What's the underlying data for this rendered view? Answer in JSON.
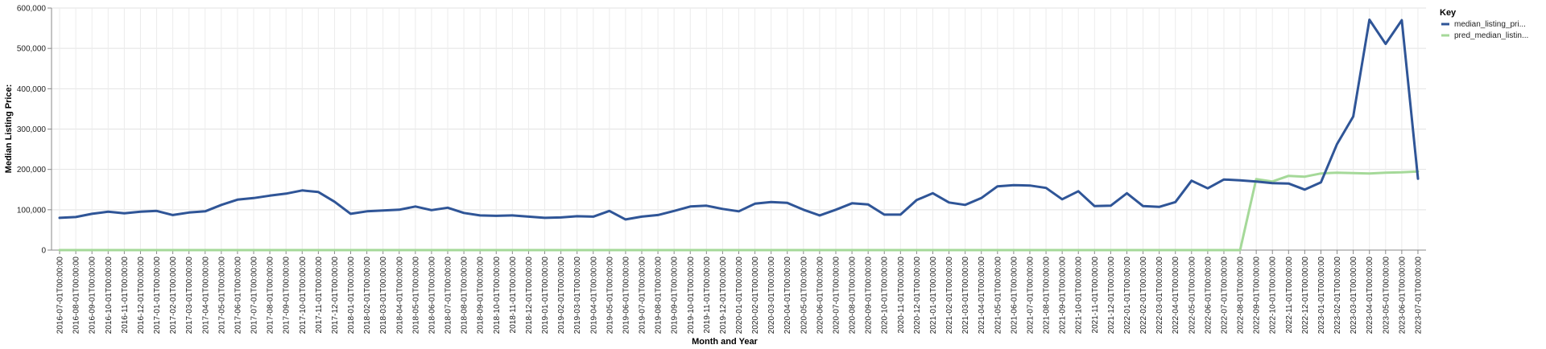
{
  "chart_data": {
    "type": "line",
    "title": "",
    "xlabel": "Month and Year",
    "ylabel": "Median Listing Price:",
    "ylim": [
      0,
      600000
    ],
    "yticks": [
      "0",
      "100,000",
      "200,000",
      "300,000",
      "400,000",
      "500,000",
      "600,000"
    ],
    "grid": true,
    "legend_position": "right",
    "legend_title": "Key",
    "x": [
      "2016-07-01T00:00:00",
      "2016-08-01T00:00:00",
      "2016-09-01T00:00:00",
      "2016-10-01T00:00:00",
      "2016-11-01T00:00:00",
      "2016-12-01T00:00:00",
      "2017-01-01T00:00:00",
      "2017-02-01T00:00:00",
      "2017-03-01T00:00:00",
      "2017-04-01T00:00:00",
      "2017-05-01T00:00:00",
      "2017-06-01T00:00:00",
      "2017-07-01T00:00:00",
      "2017-08-01T00:00:00",
      "2017-09-01T00:00:00",
      "2017-10-01T00:00:00",
      "2017-11-01T00:00:00",
      "2017-12-01T00:00:00",
      "2018-01-01T00:00:00",
      "2018-02-01T00:00:00",
      "2018-03-01T00:00:00",
      "2018-04-01T00:00:00",
      "2018-05-01T00:00:00",
      "2018-06-01T00:00:00",
      "2018-07-01T00:00:00",
      "2018-08-01T00:00:00",
      "2018-09-01T00:00:00",
      "2018-10-01T00:00:00",
      "2018-11-01T00:00:00",
      "2018-12-01T00:00:00",
      "2019-01-01T00:00:00",
      "2019-02-01T00:00:00",
      "2019-03-01T00:00:00",
      "2019-04-01T00:00:00",
      "2019-05-01T00:00:00",
      "2019-06-01T00:00:00",
      "2019-07-01T00:00:00",
      "2019-08-01T00:00:00",
      "2019-09-01T00:00:00",
      "2019-10-01T00:00:00",
      "2019-11-01T00:00:00",
      "2019-12-01T00:00:00",
      "2020-01-01T00:00:00",
      "2020-02-01T00:00:00",
      "2020-03-01T00:00:00",
      "2020-04-01T00:00:00",
      "2020-05-01T00:00:00",
      "2020-06-01T00:00:00",
      "2020-07-01T00:00:00",
      "2020-08-01T00:00:00",
      "2020-09-01T00:00:00",
      "2020-10-01T00:00:00",
      "2020-11-01T00:00:00",
      "2020-12-01T00:00:00",
      "2021-01-01T00:00:00",
      "2021-02-01T00:00:00",
      "2021-03-01T00:00:00",
      "2021-04-01T00:00:00",
      "2021-05-01T00:00:00",
      "2021-06-01T00:00:00",
      "2021-07-01T00:00:00",
      "2021-08-01T00:00:00",
      "2021-09-01T00:00:00",
      "2021-10-01T00:00:00",
      "2021-11-01T00:00:00",
      "2021-12-01T00:00:00",
      "2022-01-01T00:00:00",
      "2022-02-01T00:00:00",
      "2022-03-01T00:00:00",
      "2022-04-01T00:00:00",
      "2022-05-01T00:00:00",
      "2022-06-01T00:00:00",
      "2022-07-01T00:00:00",
      "2022-08-01T00:00:00",
      "2022-09-01T00:00:00",
      "2022-10-01T00:00:00",
      "2022-11-01T00:00:00",
      "2022-12-01T00:00:00",
      "2023-01-01T00:00:00",
      "2023-02-01T00:00:00",
      "2023-03-01T00:00:00",
      "2023-04-01T00:00:00",
      "2023-05-01T00:00:00",
      "2023-06-01T00:00:00",
      "2023-07-01T00:00:00"
    ],
    "series": [
      {
        "name": "median_listing_pri...",
        "color": "#2f5597",
        "values": [
          80000,
          82000,
          90000,
          95000,
          91000,
          95000,
          97000,
          87000,
          93000,
          96000,
          112000,
          125000,
          129000,
          135000,
          140000,
          148000,
          144000,
          120000,
          90000,
          96000,
          98000,
          100000,
          108000,
          99000,
          105000,
          92000,
          86000,
          85000,
          86000,
          83000,
          80000,
          81000,
          84000,
          83000,
          97000,
          76000,
          83000,
          87000,
          97000,
          108000,
          110000,
          102000,
          96000,
          115000,
          119000,
          117000,
          100000,
          86000,
          100000,
          116000,
          113000,
          88000,
          88000,
          124000,
          141000,
          118000,
          112000,
          129000,
          158000,
          161000,
          160000,
          154000,
          126000,
          146000,
          109000,
          110000,
          141000,
          109000,
          107000,
          119000,
          172000,
          153000,
          175000,
          173000,
          170000,
          166000,
          165000,
          150000,
          168000,
          263000,
          331000,
          571000,
          511000,
          570000,
          177000
        ]
      },
      {
        "name": "pred_median_listin...",
        "color": "#a5d999",
        "values": [
          0,
          0,
          0,
          0,
          0,
          0,
          0,
          0,
          0,
          0,
          0,
          0,
          0,
          0,
          0,
          0,
          0,
          0,
          0,
          0,
          0,
          0,
          0,
          0,
          0,
          0,
          0,
          0,
          0,
          0,
          0,
          0,
          0,
          0,
          0,
          0,
          0,
          0,
          0,
          0,
          0,
          0,
          0,
          0,
          0,
          0,
          0,
          0,
          0,
          0,
          0,
          0,
          0,
          0,
          0,
          0,
          0,
          0,
          0,
          0,
          0,
          0,
          0,
          0,
          0,
          0,
          0,
          0,
          0,
          0,
          0,
          0,
          0,
          0,
          176000,
          170000,
          184000,
          182000,
          190000,
          192000,
          191000,
          190000,
          192000,
          193000,
          195000
        ]
      }
    ]
  }
}
